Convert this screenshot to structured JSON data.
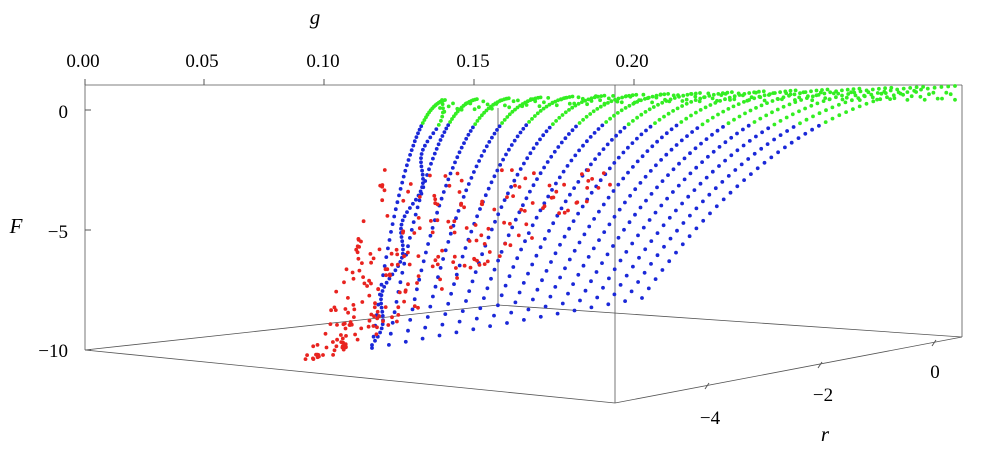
{
  "chart_data": {
    "type": "scatter",
    "title": "",
    "axes": {
      "g": {
        "label": "g",
        "ticks": [
          "0.00",
          "0.05",
          "0.10",
          "0.15",
          "0.20"
        ],
        "range": [
          0.0,
          0.2
        ]
      },
      "F": {
        "label": "F",
        "ticks": [
          "0",
          "−5",
          "−10"
        ],
        "range": [
          -10,
          0
        ]
      },
      "r": {
        "label": "r",
        "ticks": [
          "−4",
          "−2",
          "0"
        ],
        "range": [
          -5,
          0.5
        ]
      }
    },
    "series": [
      {
        "color": "#33ee22",
        "region": "g 0.15–0.20, F ≈ −2 to 0"
      },
      {
        "color": "#1a28d8",
        "region": "g 0.13–0.20, F ≈ −10 to −1"
      },
      {
        "color": "#e8231f",
        "region": "g ≈ 0.11–0.20, F ≈ −10 to −2"
      }
    ],
    "grid": false,
    "legend": "none"
  }
}
